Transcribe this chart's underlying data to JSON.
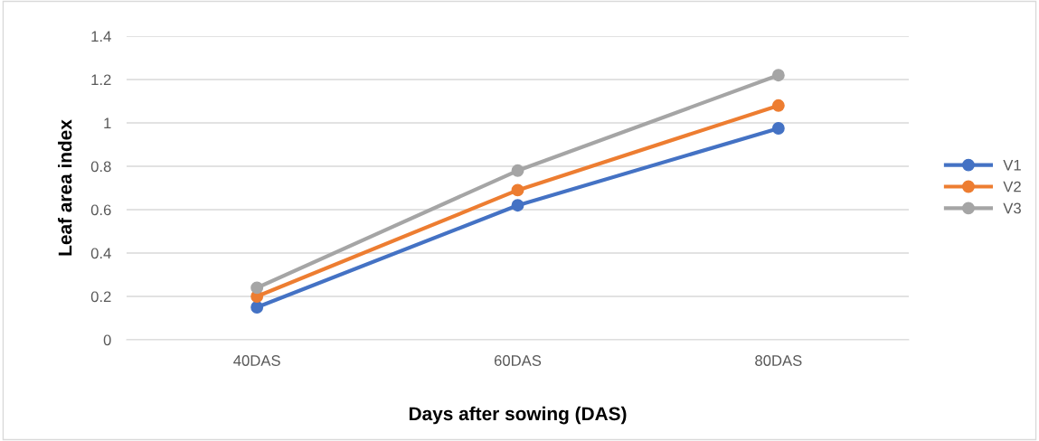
{
  "chart_data": {
    "type": "line",
    "xlabel": "Days after sowing (DAS)",
    "ylabel": "Leaf area index",
    "categories": [
      "40DAS",
      "60DAS",
      "80DAS"
    ],
    "series": [
      {
        "name": "V1",
        "color": "#4472c4",
        "values": [
          0.15,
          0.62,
          0.975
        ]
      },
      {
        "name": "V2",
        "color": "#ed7d31",
        "values": [
          0.2,
          0.69,
          1.08
        ]
      },
      {
        "name": "V3",
        "color": "#a5a5a5",
        "values": [
          0.24,
          0.78,
          1.22
        ]
      }
    ],
    "ylim": [
      0,
      1.4
    ],
    "yticks": [
      0,
      0.2,
      0.4,
      0.6,
      0.8,
      1,
      1.2,
      1.4
    ],
    "grid": "y",
    "legend": "right",
    "marker": "circle",
    "line_style": "solid"
  }
}
